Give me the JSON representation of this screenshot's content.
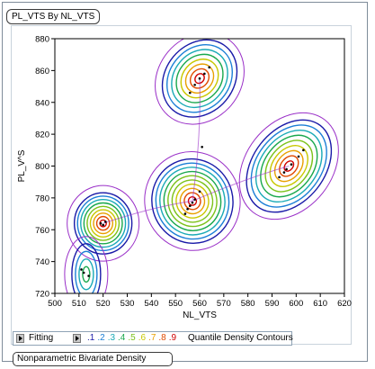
{
  "report": {
    "title": "PL_VTS By NL_VTS",
    "bottom_tab_label": "Nonparametric Bivariate Density"
  },
  "chart_data": {
    "type": "scatter",
    "subtype": "bivariate density contour plot",
    "xlabel": "NL_VTS",
    "ylabel": "PL_V^S",
    "xlim": [
      500,
      620
    ],
    "ylim": [
      720,
      880
    ],
    "x_ticks": [
      "500",
      "510",
      "520",
      "530",
      "540",
      "550",
      "560",
      "570",
      "580",
      "590",
      "600",
      "610",
      "620"
    ],
    "y_ticks": [
      "720",
      "740",
      "760",
      "780",
      "800",
      "820",
      "840",
      "860",
      "880"
    ],
    "clusters": [
      {
        "center_x": 520,
        "center_y": 764
      },
      {
        "center_x": 557,
        "center_y": 778
      },
      {
        "center_x": 597,
        "center_y": 800
      },
      {
        "center_x": 560,
        "center_y": 855
      },
      {
        "center_x": 513,
        "center_y": 732
      }
    ],
    "points": [
      {
        "x": 519,
        "y": 764
      },
      {
        "x": 521,
        "y": 765
      },
      {
        "x": 520,
        "y": 763
      },
      {
        "x": 512,
        "y": 733
      },
      {
        "x": 514,
        "y": 731
      },
      {
        "x": 511,
        "y": 735
      },
      {
        "x": 554,
        "y": 770
      },
      {
        "x": 556,
        "y": 775
      },
      {
        "x": 558,
        "y": 779
      },
      {
        "x": 560,
        "y": 784
      },
      {
        "x": 555,
        "y": 773
      },
      {
        "x": 557,
        "y": 777
      },
      {
        "x": 593,
        "y": 793
      },
      {
        "x": 596,
        "y": 798
      },
      {
        "x": 598,
        "y": 801
      },
      {
        "x": 601,
        "y": 806
      },
      {
        "x": 603,
        "y": 810
      },
      {
        "x": 595,
        "y": 796
      },
      {
        "x": 556,
        "y": 846
      },
      {
        "x": 558,
        "y": 851
      },
      {
        "x": 560,
        "y": 855
      },
      {
        "x": 562,
        "y": 858
      },
      {
        "x": 564,
        "y": 862
      },
      {
        "x": 561,
        "y": 812
      }
    ]
  },
  "fitting": {
    "label": "Fitting",
    "levels": [
      ".1",
      ".2",
      ".3",
      ".4",
      ".5",
      ".6",
      ".7",
      ".8",
      ".9"
    ],
    "level_colors": [
      "#1a1aa8",
      "#1c7fd6",
      "#1aaab6",
      "#19a84d",
      "#7cc21a",
      "#c8c800",
      "#e8a000",
      "#e04a00",
      "#d00000"
    ],
    "outer_color": "#9a30c8",
    "contours_label": "Quantile Density Contours"
  }
}
